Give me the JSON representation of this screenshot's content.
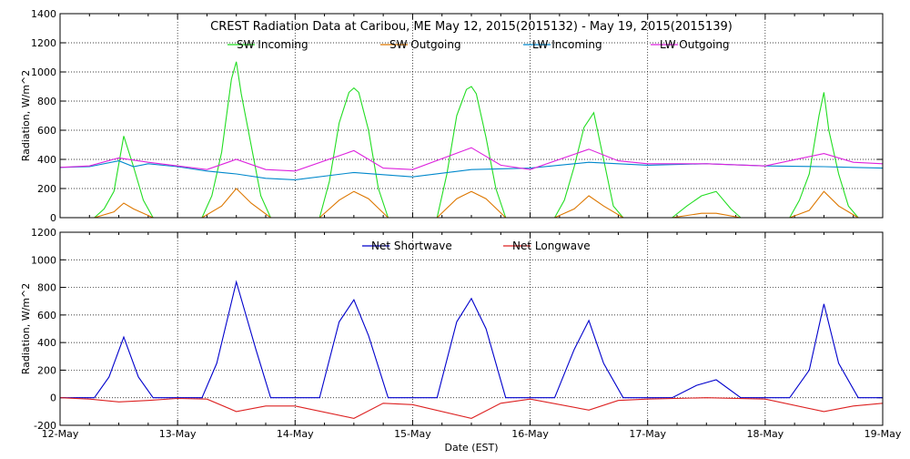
{
  "chart_data": [
    {
      "type": "line",
      "title": "CREST Radiation Data at Caribou, ME   May 12, 2015(2015132) - May 19, 2015(2015139)",
      "xlabel": "",
      "ylabel": "Radiation, W/m^2",
      "ylim": [
        0,
        1400
      ],
      "yticks": [
        0,
        200,
        400,
        600,
        800,
        1000,
        1200,
        1400
      ],
      "xlim": [
        "2015-05-12 00:00",
        "2015-05-19 00:00"
      ],
      "grid": true,
      "legend": "top",
      "series": [
        {
          "name": "SW Incoming",
          "color": "#22dd22",
          "x": [
            "2015-05-12 07:00",
            "2015-05-12 09:00",
            "2015-05-12 11:00",
            "2015-05-12 13:00",
            "2015-05-12 15:00",
            "2015-05-12 17:00",
            "2015-05-12 19:00",
            "2015-05-13 05:00",
            "2015-05-13 07:00",
            "2015-05-13 09:00",
            "2015-05-13 11:00",
            "2015-05-13 12:00",
            "2015-05-13 13:00",
            "2015-05-13 15:00",
            "2015-05-13 17:00",
            "2015-05-13 19:00",
            "2015-05-14 05:00",
            "2015-05-14 07:00",
            "2015-05-14 09:00",
            "2015-05-14 11:00",
            "2015-05-14 12:00",
            "2015-05-14 13:00",
            "2015-05-14 15:00",
            "2015-05-14 17:00",
            "2015-05-14 19:00",
            "2015-05-15 05:00",
            "2015-05-15 07:00",
            "2015-05-15 09:00",
            "2015-05-15 11:00",
            "2015-05-15 12:00",
            "2015-05-15 13:00",
            "2015-05-15 15:00",
            "2015-05-15 17:00",
            "2015-05-15 19:00",
            "2015-05-16 05:00",
            "2015-05-16 07:00",
            "2015-05-16 09:00",
            "2015-05-16 11:00",
            "2015-05-16 13:00",
            "2015-05-16 15:00",
            "2015-05-16 17:00",
            "2015-05-16 19:00",
            "2015-05-17 05:00",
            "2015-05-17 08:00",
            "2015-05-17 11:00",
            "2015-05-17 14:00",
            "2015-05-17 17:00",
            "2015-05-17 19:00",
            "2015-05-18 05:00",
            "2015-05-18 07:00",
            "2015-05-18 09:00",
            "2015-05-18 11:00",
            "2015-05-18 12:00",
            "2015-05-18 13:00",
            "2015-05-18 15:00",
            "2015-05-18 17:00",
            "2015-05-18 19:00"
          ],
          "values": [
            0,
            60,
            180,
            560,
            350,
            120,
            0,
            0,
            150,
            450,
            950,
            1070,
            850,
            500,
            150,
            0,
            0,
            250,
            650,
            860,
            890,
            860,
            600,
            200,
            0,
            0,
            300,
            700,
            880,
            900,
            850,
            550,
            200,
            0,
            0,
            120,
            350,
            620,
            720,
            400,
            80,
            0,
            0,
            80,
            150,
            180,
            60,
            0,
            0,
            120,
            300,
            700,
            860,
            600,
            300,
            80,
            0
          ]
        },
        {
          "name": "SW Outgoing",
          "color": "#dd7700",
          "x": [
            "2015-05-12 07:00",
            "2015-05-12 11:00",
            "2015-05-12 13:00",
            "2015-05-12 15:00",
            "2015-05-12 19:00",
            "2015-05-13 05:00",
            "2015-05-13 09:00",
            "2015-05-13 12:00",
            "2015-05-13 15:00",
            "2015-05-13 19:00",
            "2015-05-14 05:00",
            "2015-05-14 09:00",
            "2015-05-14 12:00",
            "2015-05-14 15:00",
            "2015-05-14 19:00",
            "2015-05-15 05:00",
            "2015-05-15 09:00",
            "2015-05-15 12:00",
            "2015-05-15 15:00",
            "2015-05-15 19:00",
            "2015-05-16 05:00",
            "2015-05-16 09:00",
            "2015-05-16 12:00",
            "2015-05-16 15:00",
            "2015-05-16 19:00",
            "2015-05-17 05:00",
            "2015-05-17 11:00",
            "2015-05-17 14:00",
            "2015-05-17 19:00",
            "2015-05-18 05:00",
            "2015-05-18 09:00",
            "2015-05-18 12:00",
            "2015-05-18 15:00",
            "2015-05-18 19:00"
          ],
          "values": [
            0,
            40,
            100,
            60,
            0,
            0,
            80,
            200,
            100,
            0,
            0,
            120,
            180,
            130,
            0,
            0,
            130,
            180,
            130,
            0,
            0,
            60,
            150,
            80,
            0,
            0,
            30,
            30,
            0,
            0,
            50,
            180,
            80,
            0
          ]
        },
        {
          "name": "LW Incoming",
          "color": "#0088cc",
          "x": [
            "2015-05-12 00:00",
            "2015-05-12 06:00",
            "2015-05-12 12:00",
            "2015-05-12 15:00",
            "2015-05-12 18:00",
            "2015-05-13 00:00",
            "2015-05-13 06:00",
            "2015-05-13 12:00",
            "2015-05-13 18:00",
            "2015-05-14 00:00",
            "2015-05-14 12:00",
            "2015-05-15 00:00",
            "2015-05-15 12:00",
            "2015-05-16 00:00",
            "2015-05-16 12:00",
            "2015-05-17 00:00",
            "2015-05-17 12:00",
            "2015-05-18 00:00",
            "2015-05-18 12:00",
            "2015-05-18 18:00",
            "2015-05-19 00:00"
          ],
          "values": [
            345,
            350,
            390,
            350,
            370,
            350,
            320,
            300,
            270,
            260,
            310,
            280,
            330,
            340,
            380,
            360,
            370,
            355,
            350,
            345,
            340
          ]
        },
        {
          "name": "LW Outgoing",
          "color": "#dd22dd",
          "x": [
            "2015-05-12 00:00",
            "2015-05-12 06:00",
            "2015-05-12 12:00",
            "2015-05-12 18:00",
            "2015-05-13 00:00",
            "2015-05-13 06:00",
            "2015-05-13 12:00",
            "2015-05-13 18:00",
            "2015-05-14 00:00",
            "2015-05-14 12:00",
            "2015-05-14 18:00",
            "2015-05-15 00:00",
            "2015-05-15 12:00",
            "2015-05-15 18:00",
            "2015-05-16 00:00",
            "2015-05-16 12:00",
            "2015-05-16 18:00",
            "2015-05-17 00:00",
            "2015-05-17 12:00",
            "2015-05-18 00:00",
            "2015-05-18 12:00",
            "2015-05-18 18:00",
            "2015-05-19 00:00"
          ],
          "values": [
            345,
            355,
            410,
            380,
            355,
            330,
            400,
            330,
            320,
            460,
            340,
            330,
            480,
            360,
            330,
            470,
            390,
            370,
            370,
            355,
            440,
            380,
            370
          ]
        }
      ]
    },
    {
      "type": "line",
      "title": "",
      "xlabel": "Date (EST)",
      "ylabel": "Radiation, W/m^2",
      "ylim": [
        -200,
        1200
      ],
      "yticks": [
        -200,
        0,
        200,
        400,
        600,
        800,
        1000,
        1200
      ],
      "xlim": [
        "2015-05-12 00:00",
        "2015-05-19 00:00"
      ],
      "xtick_labels": [
        "12-May",
        "13-May",
        "14-May",
        "15-May",
        "16-May",
        "17-May",
        "18-May",
        "19-May"
      ],
      "grid": true,
      "legend": "top",
      "series": [
        {
          "name": "Net Shortwave",
          "color": "#0000cc",
          "x": [
            "2015-05-12 00:00",
            "2015-05-12 07:00",
            "2015-05-12 10:00",
            "2015-05-12 13:00",
            "2015-05-12 16:00",
            "2015-05-12 19:00",
            "2015-05-13 05:00",
            "2015-05-13 08:00",
            "2015-05-13 12:00",
            "2015-05-13 16:00",
            "2015-05-13 19:00",
            "2015-05-14 05:00",
            "2015-05-14 09:00",
            "2015-05-14 12:00",
            "2015-05-14 15:00",
            "2015-05-14 19:00",
            "2015-05-15 05:00",
            "2015-05-15 09:00",
            "2015-05-15 12:00",
            "2015-05-15 15:00",
            "2015-05-15 19:00",
            "2015-05-16 05:00",
            "2015-05-16 09:00",
            "2015-05-16 12:00",
            "2015-05-16 15:00",
            "2015-05-16 19:00",
            "2015-05-17 05:00",
            "2015-05-17 10:00",
            "2015-05-17 14:00",
            "2015-05-17 19:00",
            "2015-05-18 05:00",
            "2015-05-18 09:00",
            "2015-05-18 12:00",
            "2015-05-18 15:00",
            "2015-05-18 19:00",
            "2015-05-19 00:00"
          ],
          "values": [
            0,
            0,
            150,
            440,
            150,
            0,
            0,
            250,
            840,
            350,
            0,
            0,
            550,
            710,
            450,
            0,
            0,
            550,
            720,
            500,
            0,
            0,
            350,
            560,
            250,
            0,
            0,
            90,
            130,
            0,
            0,
            200,
            680,
            250,
            0,
            0
          ]
        },
        {
          "name": "Net Longwave",
          "color": "#dd2222",
          "x": [
            "2015-05-12 00:00",
            "2015-05-12 06:00",
            "2015-05-12 12:00",
            "2015-05-12 18:00",
            "2015-05-13 00:00",
            "2015-05-13 06:00",
            "2015-05-13 12:00",
            "2015-05-13 18:00",
            "2015-05-14 00:00",
            "2015-05-14 12:00",
            "2015-05-14 18:00",
            "2015-05-15 00:00",
            "2015-05-15 12:00",
            "2015-05-15 18:00",
            "2015-05-16 00:00",
            "2015-05-16 12:00",
            "2015-05-16 18:00",
            "2015-05-17 00:00",
            "2015-05-17 12:00",
            "2015-05-18 00:00",
            "2015-05-18 12:00",
            "2015-05-18 18:00",
            "2015-05-19 00:00"
          ],
          "values": [
            0,
            -10,
            -30,
            -20,
            -5,
            -10,
            -100,
            -60,
            -60,
            -150,
            -40,
            -50,
            -150,
            -40,
            -10,
            -90,
            -20,
            -10,
            0,
            -10,
            -100,
            -60,
            -40
          ]
        }
      ]
    }
  ]
}
